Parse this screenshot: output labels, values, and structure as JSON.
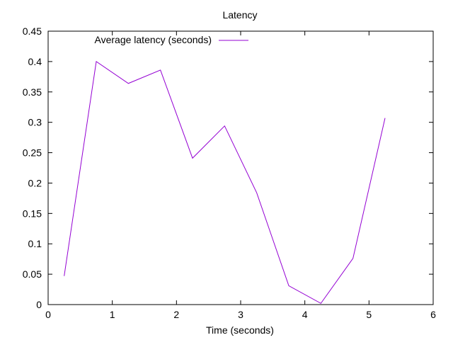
{
  "chart_data": {
    "type": "line",
    "title": "Latency",
    "xlabel": "Time (seconds)",
    "ylabel": "",
    "xlim": [
      0,
      6
    ],
    "ylim": [
      0,
      0.45
    ],
    "xticks": [
      0,
      1,
      2,
      3,
      4,
      5,
      6
    ],
    "yticks": [
      0,
      0.05,
      0.1,
      0.15,
      0.2,
      0.25,
      0.3,
      0.35,
      0.4,
      0.45
    ],
    "legend_position": "top-left",
    "grid": false,
    "series": [
      {
        "name": "Average latency (seconds)",
        "color": "#9400d3",
        "x": [
          0.25,
          0.75,
          1.25,
          1.75,
          2.25,
          2.75,
          3.25,
          3.75,
          4.25,
          4.75,
          5.25
        ],
        "y": [
          0.047,
          0.4,
          0.364,
          0.386,
          0.241,
          0.294,
          0.184,
          0.031,
          0.002,
          0.076,
          0.307
        ]
      }
    ]
  }
}
